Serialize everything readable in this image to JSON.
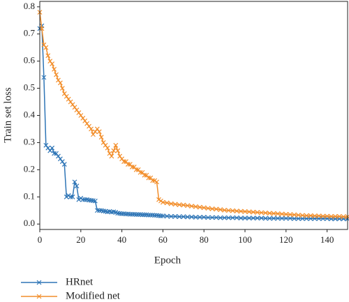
{
  "chart_data": {
    "type": "line",
    "xlabel": "Epoch",
    "ylabel": "Train set loss",
    "xlim": [
      0,
      150
    ],
    "ylim": [
      -0.02,
      0.82
    ],
    "xticks": [
      0,
      20,
      40,
      60,
      80,
      100,
      120,
      140
    ],
    "yticks": [
      {
        "value": 0,
        "label": "0.0"
      },
      0.1,
      0.2,
      0.3,
      0.4,
      0.5,
      0.6,
      0.7,
      0.8
    ],
    "legend": "below",
    "x": [
      0,
      1,
      2,
      3,
      4,
      5,
      6,
      7,
      8,
      9,
      10,
      11,
      12,
      13,
      14,
      15,
      16,
      17,
      18,
      19,
      20,
      21,
      22,
      23,
      24,
      25,
      26,
      27,
      28,
      29,
      30,
      31,
      32,
      33,
      34,
      35,
      36,
      37,
      38,
      39,
      40,
      41,
      42,
      43,
      44,
      45,
      46,
      47,
      48,
      49,
      50,
      51,
      52,
      53,
      54,
      55,
      56,
      57,
      58,
      59,
      60,
      62,
      64,
      66,
      68,
      70,
      72,
      74,
      76,
      78,
      80,
      82,
      84,
      86,
      88,
      90,
      92,
      94,
      96,
      98,
      100,
      102,
      104,
      106,
      108,
      110,
      112,
      114,
      116,
      118,
      120,
      122,
      124,
      126,
      128,
      130,
      132,
      134,
      136,
      138,
      140,
      142,
      144,
      146,
      148,
      150
    ],
    "series": [
      {
        "name": "HRnet",
        "color": "#2e75b6",
        "values": [
          0.72,
          0.73,
          0.54,
          0.29,
          0.28,
          0.27,
          0.28,
          0.26,
          0.26,
          0.25,
          0.24,
          0.23,
          0.22,
          0.1,
          0.105,
          0.1,
          0.1,
          0.155,
          0.14,
          0.09,
          0.095,
          0.09,
          0.09,
          0.09,
          0.088,
          0.087,
          0.086,
          0.085,
          0.05,
          0.05,
          0.05,
          0.048,
          0.047,
          0.045,
          0.046,
          0.044,
          0.045,
          0.043,
          0.04,
          0.039,
          0.038,
          0.038,
          0.037,
          0.037,
          0.036,
          0.036,
          0.036,
          0.035,
          0.035,
          0.035,
          0.034,
          0.034,
          0.034,
          0.033,
          0.033,
          0.033,
          0.032,
          0.032,
          0.031,
          0.03,
          0.03,
          0.029,
          0.028,
          0.028,
          0.027,
          0.027,
          0.026,
          0.026,
          0.025,
          0.025,
          0.025,
          0.024,
          0.024,
          0.024,
          0.023,
          0.023,
          0.023,
          0.023,
          0.023,
          0.022,
          0.022,
          0.022,
          0.022,
          0.022,
          0.022,
          0.021,
          0.021,
          0.021,
          0.021,
          0.021,
          0.021,
          0.021,
          0.02,
          0.02,
          0.02,
          0.02,
          0.02,
          0.02,
          0.02,
          0.02,
          0.02,
          0.019,
          0.019,
          0.019,
          0.019,
          0.019
        ]
      },
      {
        "name": "Modified net",
        "color": "#f28e2b",
        "values": [
          0.78,
          0.72,
          0.66,
          0.65,
          0.62,
          0.6,
          0.59,
          0.57,
          0.55,
          0.53,
          0.52,
          0.5,
          0.48,
          0.47,
          0.46,
          0.45,
          0.44,
          0.43,
          0.42,
          0.41,
          0.4,
          0.39,
          0.38,
          0.37,
          0.36,
          0.35,
          0.33,
          0.34,
          0.35,
          0.34,
          0.32,
          0.3,
          0.29,
          0.28,
          0.26,
          0.25,
          0.27,
          0.29,
          0.27,
          0.25,
          0.24,
          0.23,
          0.23,
          0.22,
          0.22,
          0.21,
          0.21,
          0.2,
          0.2,
          0.19,
          0.19,
          0.18,
          0.18,
          0.17,
          0.17,
          0.16,
          0.16,
          0.155,
          0.09,
          0.085,
          0.08,
          0.078,
          0.075,
          0.073,
          0.071,
          0.07,
          0.068,
          0.066,
          0.064,
          0.062,
          0.06,
          0.058,
          0.056,
          0.055,
          0.053,
          0.051,
          0.05,
          0.049,
          0.048,
          0.047,
          0.046,
          0.045,
          0.044,
          0.043,
          0.042,
          0.041,
          0.04,
          0.039,
          0.038,
          0.037,
          0.036,
          0.035,
          0.034,
          0.033,
          0.032,
          0.031,
          0.031,
          0.03,
          0.03,
          0.029,
          0.029,
          0.028,
          0.028,
          0.028,
          0.027,
          0.027
        ]
      }
    ]
  }
}
